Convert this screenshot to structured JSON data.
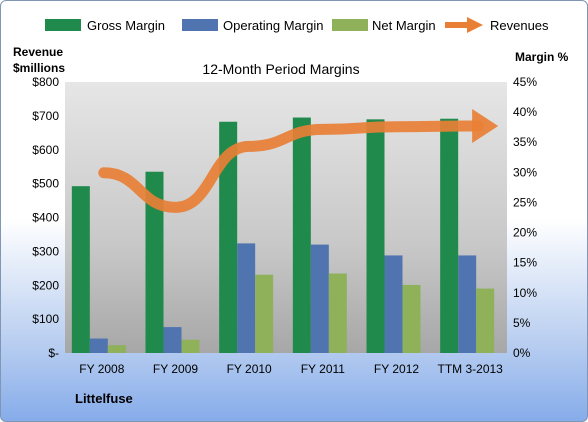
{
  "chart_data": {
    "type": "bar",
    "title": "12-Month Period Margins",
    "company": "Littelfuse",
    "y_left_label": [
      "Revenue",
      "$millions"
    ],
    "y_right_label": "Margin %",
    "categories": [
      "FY 2008",
      "FY 2009",
      "FY 2010",
      "FY 2011",
      "FY 2012",
      "TTM 3-2013"
    ],
    "y_left_ticks": [
      "$-",
      "$100",
      "$200",
      "$300",
      "$400",
      "$500",
      "$600",
      "$700",
      "$800"
    ],
    "y_right_ticks": [
      "0%",
      "5%",
      "10%",
      "15%",
      "20%",
      "25%",
      "30%",
      "35%",
      "40%",
      "45%"
    ],
    "ylim_left": [
      0,
      800
    ],
    "ylim_right": [
      0,
      45
    ],
    "grid": false,
    "legend_position": "top",
    "series": [
      {
        "name": "Gross Margin",
        "axis": "right",
        "color": "#1f8a4c",
        "values": [
          27.7,
          30.1,
          38.4,
          39.1,
          38.8,
          38.9
        ]
      },
      {
        "name": "Operating Margin",
        "axis": "right",
        "color": "#4f74b0",
        "values": [
          2.4,
          4.3,
          18.2,
          18.0,
          16.2,
          16.2
        ]
      },
      {
        "name": "Net Margin",
        "axis": "right",
        "color": "#8fb15a",
        "values": [
          1.3,
          2.2,
          13.0,
          13.2,
          11.3,
          10.7
        ]
      },
      {
        "name": "Revenues",
        "axis": "left",
        "type": "line",
        "color": "#e87f35",
        "values": [
          532,
          430,
          610,
          660,
          668,
          670
        ]
      }
    ]
  }
}
